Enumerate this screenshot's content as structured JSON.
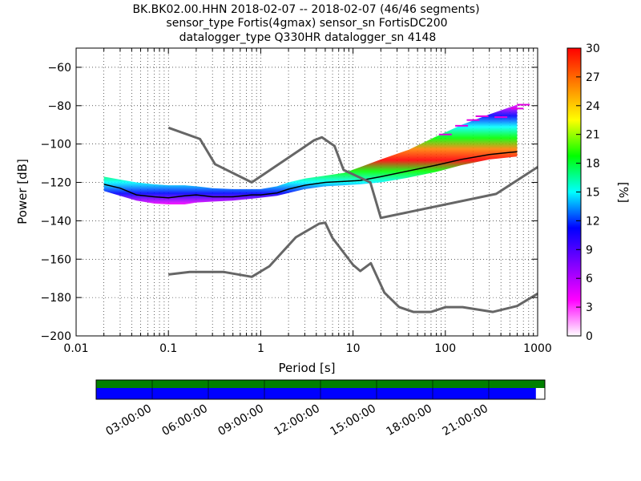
{
  "title_lines": [
    "BK.BK02.00.HHN   2018-02-07 -- 2018-02-07  (46/46 segments)",
    "sensor_type Fortis(4gmax) sensor_sn FortisDC200",
    "datalogger_type Q330HR datalogger_sn 4148"
  ],
  "chart_data": {
    "type": "heatmap",
    "xlabel": "Period [s]",
    "ylabel": "Power [dB]",
    "x_scale": "log",
    "xlim": [
      0.01,
      1000
    ],
    "ylim": [
      -200,
      -50
    ],
    "x_ticks": [
      0.01,
      0.1,
      1,
      10,
      100,
      1000
    ],
    "x_tick_labels": [
      "0.01",
      "0.1",
      "1",
      "10",
      "100",
      "1000"
    ],
    "y_ticks": [
      -200,
      -180,
      -160,
      -140,
      -120,
      -100,
      -80,
      -60
    ],
    "y_tick_labels": [
      "−200",
      "−180",
      "−160",
      "−140",
      "−120",
      "−100",
      "−80",
      "−60"
    ],
    "grid": true,
    "colorbar": {
      "label": "[%]",
      "range": [
        0,
        30
      ],
      "ticks": [
        0,
        3,
        6,
        9,
        12,
        15,
        18,
        21,
        24,
        27,
        30
      ],
      "tick_labels": [
        "0",
        "3",
        "6",
        "9",
        "12",
        "15",
        "18",
        "21",
        "24",
        "27",
        "30"
      ],
      "colormap": [
        "#ffffff",
        "#ff00ff",
        "#8000ff",
        "#0000ff",
        "#00ffff",
        "#00ff00",
        "#ffff00",
        "#ff8000",
        "#ff0000"
      ]
    },
    "reference_curves": [
      {
        "role": "noise-model-high",
        "color": "#666666",
        "points": [
          [
            0.1,
            -91.5
          ],
          [
            0.22,
            -97.4
          ],
          [
            0.32,
            -110.5
          ],
          [
            0.8,
            -120.0
          ],
          [
            3.8,
            -98.0
          ],
          [
            4.6,
            -96.5
          ],
          [
            6.3,
            -101.0
          ],
          [
            7.9,
            -113.5
          ],
          [
            15.4,
            -120.0
          ],
          [
            20,
            -138.5
          ],
          [
            354.8,
            -126.0
          ],
          [
            1000,
            -112.0
          ]
        ]
      },
      {
        "role": "noise-model-low",
        "color": "#666666",
        "points": [
          [
            0.1,
            -168.0
          ],
          [
            0.17,
            -166.7
          ],
          [
            0.4,
            -166.7
          ],
          [
            0.8,
            -169.2
          ],
          [
            1.24,
            -163.7
          ],
          [
            2.4,
            -148.6
          ],
          [
            4.3,
            -141.5
          ],
          [
            5.0,
            -141.0
          ],
          [
            6.0,
            -149.0
          ],
          [
            10.0,
            -163.0
          ],
          [
            12.0,
            -166.2
          ],
          [
            15.6,
            -162.1
          ],
          [
            21.9,
            -177.5
          ],
          [
            31.6,
            -185.0
          ],
          [
            45.0,
            -187.5
          ],
          [
            70.0,
            -187.5
          ],
          [
            101.0,
            -185.0
          ],
          [
            154.0,
            -185.0
          ],
          [
            328.0,
            -187.5
          ],
          [
            600.0,
            -184.4
          ],
          [
            1000.0,
            -178.0
          ]
        ]
      }
    ],
    "ppsd_mode": {
      "color": "#000000",
      "points": [
        [
          0.02,
          -121.0
        ],
        [
          0.03,
          -123.0
        ],
        [
          0.045,
          -126.5
        ],
        [
          0.07,
          -127.5
        ],
        [
          0.1,
          -128.0
        ],
        [
          0.15,
          -127.0
        ],
        [
          0.2,
          -126.5
        ],
        [
          0.3,
          -127.5
        ],
        [
          0.5,
          -127.5
        ],
        [
          0.8,
          -126.5
        ],
        [
          1.0,
          -126.5
        ],
        [
          1.5,
          -125.5
        ],
        [
          2.0,
          -123.5
        ],
        [
          3.0,
          -121.5
        ],
        [
          5.0,
          -120.0
        ],
        [
          8.0,
          -119.5
        ],
        [
          12.0,
          -119.0
        ],
        [
          20.0,
          -117.0
        ],
        [
          40.0,
          -114.0
        ],
        [
          80.0,
          -111.0
        ],
        [
          150.0,
          -108.0
        ],
        [
          300.0,
          -105.5
        ],
        [
          600.0,
          -104.0
        ]
      ]
    },
    "ppsd_spread": {
      "x": [
        0.02,
        0.03,
        0.045,
        0.07,
        0.1,
        0.15,
        0.2,
        0.3,
        0.5,
        0.8,
        1.0,
        1.5,
        2.0,
        3.0,
        5.0,
        8.0,
        12.0,
        20.0,
        40.0,
        80.0,
        150.0,
        300.0,
        600.0
      ],
      "upper": [
        -117.0,
        -118.5,
        -120.0,
        -121.0,
        -121.5,
        -121.5,
        -122.0,
        -123.0,
        -123.5,
        -123.5,
        -123.5,
        -122.0,
        -120.0,
        -118.0,
        -116.5,
        -115.0,
        -112.0,
        -108.0,
        -103.0,
        -96.0,
        -90.0,
        -84.5,
        -79.5
      ],
      "lower": [
        -124.5,
        -127.0,
        -129.5,
        -131.0,
        -131.5,
        -131.5,
        -130.5,
        -130.0,
        -129.5,
        -128.5,
        -128.0,
        -127.0,
        -125.5,
        -123.5,
        -122.0,
        -121.5,
        -121.0,
        -120.0,
        -117.5,
        -114.5,
        -111.0,
        -108.0,
        -106.5
      ]
    },
    "upper_outliers": {
      "color": "#e000e0",
      "points": [
        [
          100,
          -95
        ],
        [
          150,
          -90.5
        ],
        [
          200,
          -87.5
        ],
        [
          250,
          -85.5
        ],
        [
          400,
          -86
        ],
        [
          600,
          -81.5
        ],
        [
          700,
          -79.5
        ]
      ]
    },
    "time_coverage": {
      "tick_labels": [
        "03:00:00",
        "06:00:00",
        "09:00:00",
        "12:00:00",
        "15:00:00",
        "18:00:00",
        "21:00:00"
      ],
      "data_fraction": 0.98,
      "gap_fraction": 0.02,
      "top_bar_color": "#008000",
      "bottom_bar_color": "#0000ff"
    }
  }
}
